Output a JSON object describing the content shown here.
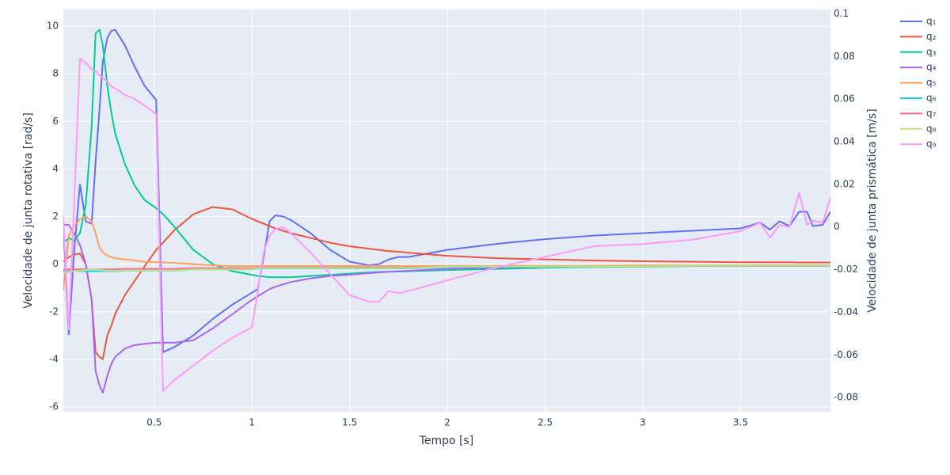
{
  "chart_data": {
    "type": "line",
    "xlabel": "Tempo [s]",
    "ylabel": "Velocidade de junta rotativa [rad/s]",
    "y2label": "Velocidade de junta prismática [m/s]",
    "grid": true,
    "legend": "outside-right",
    "xlim": [
      0.035,
      3.96
    ],
    "xticks": [
      0.5,
      1,
      1.5,
      2,
      2.5,
      3,
      3.5
    ],
    "ylim": [
      -6.2,
      10.7
    ],
    "yticks": [
      -6,
      -4,
      -2,
      0,
      2,
      4,
      6,
      8,
      10
    ],
    "y2lim": [
      -0.0866,
      0.102
    ],
    "y2ticks": [
      -0.08,
      -0.06,
      -0.04,
      -0.02,
      0,
      0.02,
      0.04,
      0.06,
      0.08,
      0.1
    ],
    "x": [
      0.035,
      0.063,
      0.09,
      0.12,
      0.15,
      0.18,
      0.2,
      0.22,
      0.237,
      0.26,
      0.28,
      0.3,
      0.35,
      0.4,
      0.45,
      0.51,
      0.545,
      0.6,
      0.7,
      0.8,
      0.9,
      1.0,
      1.03,
      1.06,
      1.09,
      1.12,
      1.16,
      1.2,
      1.3,
      1.4,
      1.5,
      1.6,
      1.65,
      1.7,
      1.75,
      1.8,
      2.0,
      2.25,
      2.5,
      2.75,
      3.0,
      3.25,
      3.5,
      3.6,
      3.65,
      3.7,
      3.75,
      3.8,
      3.84,
      3.87,
      3.92,
      3.96
    ],
    "series": [
      {
        "name": "q₁",
        "color": "#636efa",
        "values": [
          1.65,
          -2.95,
          0.5,
          3.35,
          1.8,
          1.7,
          4.3,
          6.5,
          8.5,
          9.5,
          9.8,
          9.85,
          9.2,
          8.3,
          7.5,
          6.9,
          -3.7,
          -3.5,
          -3.0,
          -2.3,
          -1.7,
          -1.2,
          -1.05,
          0.3,
          1.8,
          2.05,
          2.0,
          1.85,
          1.3,
          0.6,
          0.1,
          -0.05,
          0.0,
          0.2,
          0.3,
          0.3,
          0.6,
          0.85,
          1.05,
          1.2,
          1.3,
          1.4,
          1.5,
          1.75,
          1.45,
          1.8,
          1.6,
          2.2,
          2.2,
          1.6,
          1.65,
          2.2
        ]
      },
      {
        "name": "q₂",
        "color": "#EF553B",
        "values": [
          0.1,
          0.3,
          0.4,
          0.45,
          0.0,
          -1.5,
          -3.7,
          -3.9,
          -4.0,
          -3.0,
          -2.6,
          -2.1,
          -1.3,
          -0.7,
          -0.1,
          0.6,
          0.9,
          1.4,
          2.1,
          2.4,
          2.3,
          1.9,
          1.8,
          1.7,
          1.6,
          1.5,
          1.4,
          1.3,
          1.1,
          0.9,
          0.75,
          0.65,
          0.6,
          0.55,
          0.52,
          0.48,
          0.35,
          0.25,
          0.2,
          0.15,
          0.12,
          0.1,
          0.08,
          0.08,
          0.08,
          0.08,
          0.08,
          0.07,
          0.07,
          0.07,
          0.07,
          0.07
        ]
      },
      {
        "name": "q₃",
        "color": "#00cc96",
        "values": [
          0.9,
          1.1,
          1.0,
          1.3,
          2.5,
          5.8,
          9.7,
          9.85,
          9.2,
          7.5,
          6.4,
          5.5,
          4.2,
          3.3,
          2.7,
          2.35,
          2.1,
          1.6,
          0.6,
          0.0,
          -0.3,
          -0.45,
          -0.5,
          -0.52,
          -0.55,
          -0.55,
          -0.55,
          -0.55,
          -0.5,
          -0.45,
          -0.4,
          -0.35,
          -0.33,
          -0.32,
          -0.31,
          -0.3,
          -0.25,
          -0.2,
          -0.15,
          -0.12,
          -0.1,
          -0.08,
          -0.06,
          -0.05,
          -0.05,
          -0.05,
          -0.05,
          -0.05,
          -0.05,
          -0.05,
          -0.05,
          -0.05
        ]
      },
      {
        "name": "q₄",
        "color": "#ab63fa",
        "values": [
          1.65,
          1.65,
          1.3,
          0.8,
          0.0,
          -1.5,
          -4.5,
          -5.1,
          -5.4,
          -4.7,
          -4.2,
          -3.9,
          -3.55,
          -3.4,
          -3.35,
          -3.3,
          -3.3,
          -3.3,
          -3.2,
          -2.7,
          -2.1,
          -1.5,
          -1.35,
          -1.2,
          -1.05,
          -0.95,
          -0.85,
          -0.75,
          -0.6,
          -0.5,
          -0.45,
          -0.38,
          -0.35,
          -0.32,
          -0.3,
          -0.28,
          -0.2,
          -0.15,
          -0.12,
          -0.1,
          -0.08,
          -0.06,
          -0.05,
          -0.04,
          -0.04,
          -0.04,
          -0.04,
          -0.04,
          -0.04,
          -0.04,
          -0.04,
          -0.04
        ]
      },
      {
        "name": "q₅",
        "color": "#FFA15A",
        "values": [
          -1.1,
          1.2,
          1.6,
          1.9,
          2.0,
          1.8,
          1.3,
          0.7,
          0.5,
          0.35,
          0.3,
          0.25,
          0.2,
          0.15,
          0.1,
          0.08,
          0.07,
          0.05,
          0.0,
          -0.05,
          -0.08,
          -0.08,
          -0.08,
          -0.08,
          -0.08,
          -0.08,
          -0.08,
          -0.08,
          -0.08,
          -0.08,
          -0.08,
          -0.08,
          -0.08,
          -0.08,
          -0.08,
          -0.08,
          -0.07,
          -0.07,
          -0.07,
          -0.07,
          -0.05,
          -0.05,
          -0.05,
          -0.05,
          -0.05,
          -0.05,
          -0.05,
          -0.05,
          -0.05,
          -0.05,
          -0.05,
          -0.05
        ]
      },
      {
        "name": "q₆",
        "color": "#19d3f3",
        "values": [
          -0.3,
          -0.3,
          -0.3,
          -0.3,
          -0.3,
          -0.3,
          -0.3,
          -0.3,
          -0.3,
          -0.3,
          -0.3,
          -0.3,
          -0.28,
          -0.28,
          -0.28,
          -0.28,
          -0.28,
          -0.28,
          -0.22,
          -0.22,
          -0.22,
          -0.22,
          -0.18,
          -0.18,
          -0.18,
          -0.18,
          -0.18,
          -0.18,
          -0.18,
          -0.18,
          -0.18,
          -0.18,
          -0.18,
          -0.18,
          -0.18,
          -0.18,
          -0.12,
          -0.12,
          -0.12,
          -0.12,
          -0.12,
          -0.08,
          -0.08,
          -0.08,
          -0.08,
          -0.08,
          -0.08,
          -0.08,
          -0.08,
          -0.08,
          -0.08,
          -0.08
        ]
      },
      {
        "name": "q₇",
        "color": "#FF6692",
        "values": [
          -0.22,
          -0.22,
          -0.22,
          -0.22,
          -0.22,
          -0.22,
          -0.22,
          -0.22,
          -0.22,
          -0.22,
          -0.22,
          -0.22,
          -0.2,
          -0.2,
          -0.2,
          -0.2,
          -0.2,
          -0.2,
          -0.17,
          -0.17,
          -0.17,
          -0.17,
          -0.14,
          -0.14,
          -0.14,
          -0.14,
          -0.14,
          -0.14,
          -0.14,
          -0.14,
          -0.14,
          -0.14,
          -0.14,
          -0.14,
          -0.14,
          -0.14,
          -0.1,
          -0.1,
          -0.1,
          -0.1,
          -0.1,
          -0.07,
          -0.07,
          -0.07,
          -0.07,
          -0.07,
          -0.07,
          -0.07,
          -0.07,
          -0.07,
          -0.07,
          -0.07
        ]
      },
      {
        "name": "q₈",
        "color": "#B6E880",
        "values": [
          -0.35,
          -0.33,
          -0.3,
          -0.28,
          -0.25,
          -0.22,
          -0.22,
          -0.24,
          -0.26,
          -0.28,
          -0.28,
          -0.28,
          -0.27,
          -0.27,
          -0.27,
          -0.27,
          -0.27,
          -0.27,
          -0.22,
          -0.22,
          -0.22,
          -0.22,
          -0.16,
          -0.16,
          -0.16,
          -0.16,
          -0.16,
          -0.16,
          -0.16,
          -0.16,
          -0.16,
          -0.16,
          -0.16,
          -0.16,
          -0.16,
          -0.16,
          -0.1,
          -0.1,
          -0.1,
          -0.1,
          -0.1,
          -0.06,
          -0.06,
          -0.06,
          -0.06,
          -0.06,
          -0.06,
          -0.06,
          -0.06,
          -0.06,
          -0.06,
          -0.06
        ]
      },
      {
        "name": "q₉",
        "color": "#FF97FF",
        "axis": "y2",
        "values": [
          0.005,
          -0.048,
          0.01,
          0.079,
          0.077,
          0.074,
          0.073,
          0.071,
          0.07,
          0.068,
          0.066,
          0.065,
          0.062,
          0.06,
          0.057,
          0.053,
          -0.077,
          -0.072,
          -0.065,
          -0.058,
          -0.052,
          -0.047,
          -0.03,
          -0.012,
          -0.004,
          -0.001,
          0.0,
          -0.003,
          -0.012,
          -0.022,
          -0.032,
          -0.035,
          -0.035,
          -0.03,
          -0.031,
          -0.03,
          -0.025,
          -0.019,
          -0.014,
          -0.009,
          -0.008,
          -0.006,
          -0.002,
          0.002,
          -0.005,
          0.001,
          0.0,
          0.016,
          0.001,
          0.003,
          0.002,
          0.014
        ]
      }
    ]
  }
}
